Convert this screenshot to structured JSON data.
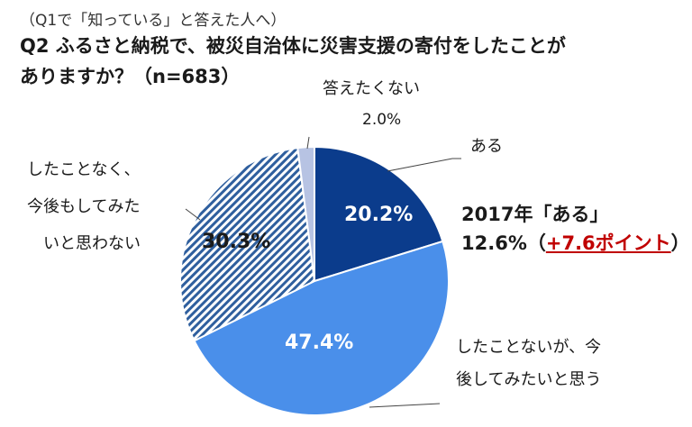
{
  "header": {
    "pretitle": "（Q1で「知っている」と答えた人へ）",
    "title_line1": "Q2 ふるさと納税で、被災自治体に災害支援の寄付をしたことが",
    "title_line2": "ありますか？（n=683）"
  },
  "comparison": {
    "line1": "2017年「ある」",
    "line2_value": "12.6%（",
    "line2_highlight": "+7.6ポイント",
    "line2_close": "）"
  },
  "chart_data": {
    "type": "pie",
    "start_angle_deg": 0,
    "direction": "clockwise",
    "slices": [
      {
        "label": "ある",
        "value": 20.2,
        "value_label": "20.2%",
        "color": "#0b3c8c",
        "pattern": "solid"
      },
      {
        "label": "したことないが、今後してみたいと思う",
        "label_lines": [
          "したことないが、今",
          "後してみたいと思う"
        ],
        "value": 47.4,
        "value_label": "47.4%",
        "color": "#4a8fea",
        "pattern": "solid"
      },
      {
        "label": "したことなく、今後もしてみたいと思わない",
        "label_lines": [
          "したことなく、",
          "今後もしてみた",
          "いと思わない"
        ],
        "value": 30.3,
        "value_label": "30.3%",
        "color": "#2f5f9e",
        "pattern": "diagonal-hatch"
      },
      {
        "label": "答えたくない",
        "value": 2.0,
        "value_label": "2.0%",
        "color": "#b7c3e3",
        "pattern": "solid"
      }
    ]
  }
}
